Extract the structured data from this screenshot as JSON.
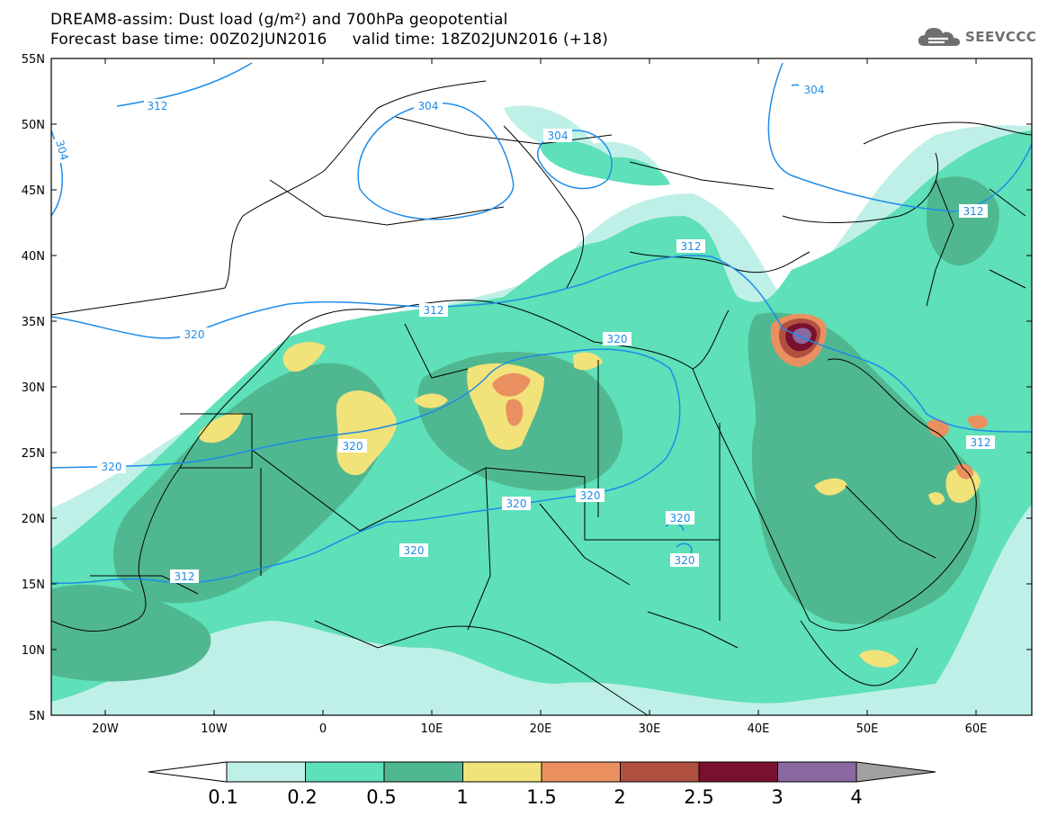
{
  "header": {
    "title_line1": "DREAM8-assim: Dust load (g/m²) and 700hPa geopotential",
    "title_line2": "Forecast base time: 00Z02JUN2016     valid time: 18Z02JUN2016 (+18)",
    "logo_text": "SEEVCCC"
  },
  "map": {
    "lat_labels": [
      "55N",
      "50N",
      "45N",
      "40N",
      "35N",
      "30N",
      "25N",
      "20N",
      "15N",
      "10N",
      "5N"
    ],
    "lon_labels": [
      "20W",
      "10W",
      "0",
      "10E",
      "20E",
      "30E",
      "40E",
      "50E",
      "60E"
    ],
    "contour_labels": [
      "312",
      "304",
      "304",
      "304",
      "304",
      "312",
      "312",
      "312",
      "320",
      "320",
      "320",
      "320",
      "320",
      "320",
      "320",
      "320",
      "312"
    ]
  },
  "colorbar": {
    "labels": [
      "0.1",
      "0.2",
      "0.5",
      "1",
      "1.5",
      "2",
      "2.5",
      "3",
      "4"
    ],
    "colors": [
      "#bff0e8",
      "#5ee0b8",
      "#50b890",
      "#f2e27a",
      "#ea9060",
      "#b05040",
      "#7a1030",
      "#8a68a0",
      "#a0a0a0"
    ]
  },
  "colors": {
    "contour": "#1e8ce8",
    "light_dust": "#bff0e8",
    "mid_dust": "#5ee0b8",
    "dense_dust": "#50b890"
  }
}
